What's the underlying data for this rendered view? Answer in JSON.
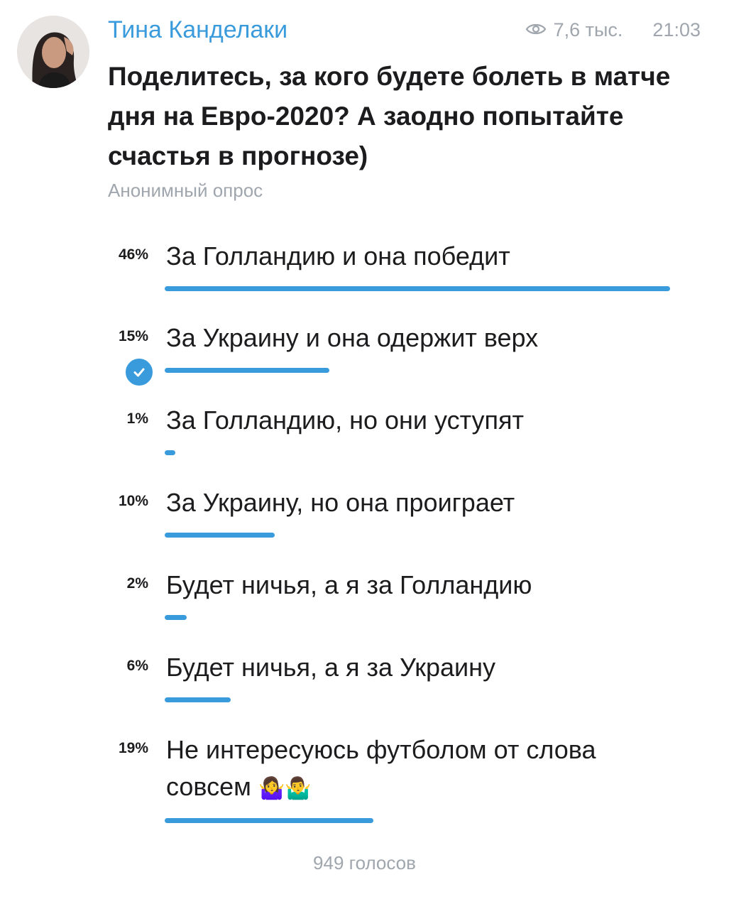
{
  "post": {
    "author": "Тина Канделаки",
    "views": "7,6 тыс.",
    "time": "21:03",
    "question": "Поделитесь, за кого будете болеть в матче дня на Евро-2020? А заодно попытайте счастья в прогнозе)",
    "poll_type": "Анонимный опрос",
    "total_votes": "949 голосов"
  },
  "options": [
    {
      "percent": "46%",
      "value": 46,
      "label": "За Голландию и она победит",
      "selected": false
    },
    {
      "percent": "15%",
      "value": 15,
      "label": "За Украину и она одержит верх",
      "selected": true
    },
    {
      "percent": "1%",
      "value": 1,
      "label": "За Голландию, но они уступят",
      "selected": false
    },
    {
      "percent": "10%",
      "value": 10,
      "label": "За Украину, но она проиграет",
      "selected": false
    },
    {
      "percent": "2%",
      "value": 2,
      "label": "Будет ничья, а я за Голландию",
      "selected": false
    },
    {
      "percent": "6%",
      "value": 6,
      "label": "Будет ничья, а я за Украину",
      "selected": false
    },
    {
      "percent": "19%",
      "value": 19,
      "label": "Не интересуюсь футболом от слова совсем",
      "emoji": "🤷‍♀️🤷‍♂️",
      "selected": false
    }
  ],
  "colors": {
    "accent": "#3a9bdc",
    "muted": "#a0a6ad",
    "text": "#1c1c1e"
  }
}
